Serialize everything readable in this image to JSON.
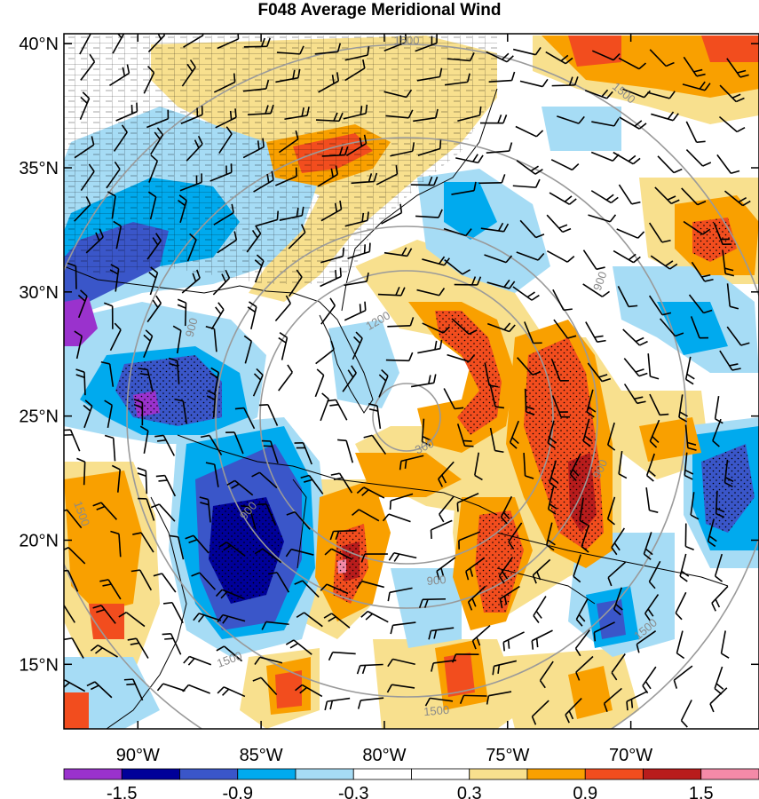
{
  "title": "F048 Average Meridional Wind",
  "map": {
    "lat_ticks": [
      "40°N",
      "35°N",
      "30°N",
      "25°N",
      "20°N",
      "15°N"
    ],
    "lon_ticks": [
      "90°W",
      "85°W",
      "80°W",
      "75°W",
      "70°W"
    ],
    "extent": {
      "lon_min": -93.0,
      "lon_max": -64.8,
      "lat_min": 12.4,
      "lat_max": 40.4
    },
    "range_ring_labels": [
      "300",
      "900",
      "1200",
      "1500"
    ],
    "ring_color": "#9a9a9a"
  },
  "colorbar": {
    "labels": [
      "-1.5",
      "-0.9",
      "-0.3",
      "0.3",
      "0.9",
      "1.5"
    ],
    "colors": [
      "#9a32cd",
      "#000099",
      "#3a56c9",
      "#00aaee",
      "#a6dcf5",
      "#ffffff",
      "#ffffff",
      "#f8e08e",
      "#f9a000",
      "#f24d1e",
      "#b81c1c",
      "#f48aa8"
    ]
  }
}
